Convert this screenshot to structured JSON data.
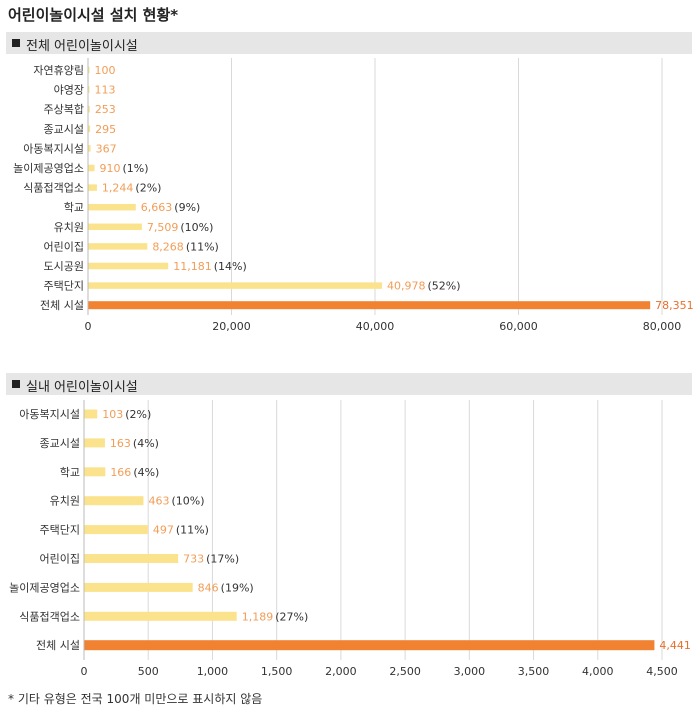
{
  "title": "어린이놀이시설 설치 현황*",
  "footnote": "* 기타 유형은 전국 100개 미만으로 표시하지 않음",
  "colors": {
    "bar": "#fbe38d",
    "total_bar": "#f08232",
    "value_label": "#f29d57",
    "pct_label": "#333333",
    "grid": "#d9d9d9",
    "section_bg": "#e6e6e6"
  },
  "chart_data": [
    {
      "type": "bar",
      "orientation": "horizontal",
      "section_label": "전체 어린이놀이시설",
      "categories": [
        "자연휴양림",
        "야영장",
        "주상복합",
        "종교시설",
        "아동복지시설",
        "놀이제공영업소",
        "식품접객업소",
        "학교",
        "유치원",
        "어린이집",
        "도시공원",
        "주택단지",
        "전체 시설"
      ],
      "values": [
        100,
        113,
        253,
        295,
        367,
        910,
        1244,
        6663,
        7509,
        8268,
        11181,
        40978,
        78351
      ],
      "value_labels": [
        "100",
        "113",
        "253",
        "295",
        "367",
        "910",
        "1,244",
        "6,663",
        "7,509",
        "8,268",
        "11,181",
        "40,978",
        "78,351"
      ],
      "pct_labels": [
        "",
        "",
        "",
        "",
        "",
        "(1%)",
        "(2%)",
        "(9%)",
        "(10%)",
        "(11%)",
        "(14%)",
        "(52%)",
        ""
      ],
      "xlim": [
        0,
        80000
      ],
      "xticks": [
        0,
        20000,
        40000,
        60000,
        80000
      ],
      "xtick_labels": [
        "0",
        "20,000",
        "40,000",
        "60,000",
        "80,000"
      ],
      "grid": true
    },
    {
      "type": "bar",
      "orientation": "horizontal",
      "section_label": "실내 어린이놀이시설",
      "categories": [
        "아동복지시설",
        "종교시설",
        "학교",
        "유치원",
        "주택단지",
        "어린이집",
        "놀이제공영업소",
        "식품접객업소",
        "전체 시설"
      ],
      "values": [
        103,
        163,
        166,
        463,
        497,
        733,
        846,
        1189,
        4441
      ],
      "value_labels": [
        "103",
        "163",
        "166",
        "463",
        "497",
        "733",
        "846",
        "1,189",
        "4,441"
      ],
      "pct_labels": [
        "(2%)",
        "(4%)",
        "(4%)",
        "(10%)",
        "(11%)",
        "(17%)",
        "(19%)",
        "(27%)",
        ""
      ],
      "xlim": [
        0,
        4500
      ],
      "xticks": [
        0,
        500,
        1000,
        1500,
        2000,
        2500,
        3000,
        3500,
        4000,
        4500
      ],
      "xtick_labels": [
        "0",
        "500",
        "1,000",
        "1,500",
        "2,000",
        "2,500",
        "3,000",
        "3,500",
        "4,000",
        "4,500"
      ],
      "grid": true
    }
  ]
}
